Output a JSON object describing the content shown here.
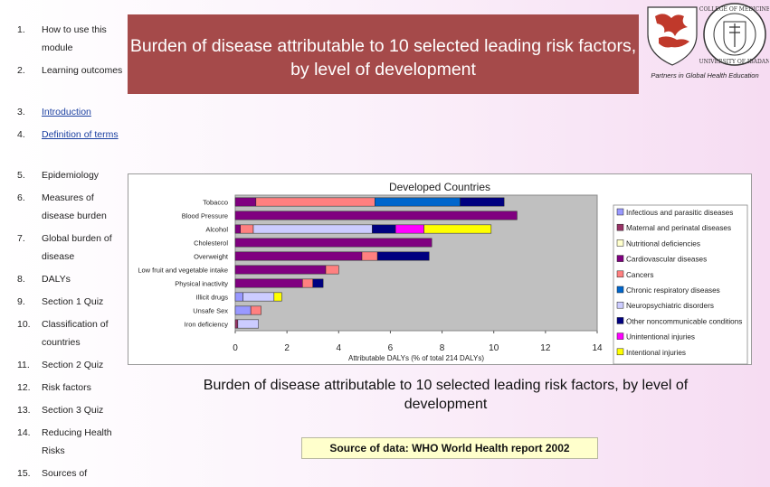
{
  "header": {
    "title": "Burden of disease attributable to 10 selected leading risk factors, by level of development"
  },
  "logo": {
    "partners_text": "Partners in Global Health Education"
  },
  "sidebar": {
    "items": [
      {
        "num": "1.",
        "label": "How to use this module",
        "link": false
      },
      {
        "num": "2.",
        "label": "Learning outcomes",
        "link": false
      },
      {
        "num": "3.",
        "label": "Introduction",
        "link": true
      },
      {
        "num": "4.",
        "label": "Definition of terms",
        "link": true
      },
      {
        "num": "5.",
        "label": "Epidemiology",
        "link": false
      },
      {
        "num": "6.",
        "label": "Measures of disease burden",
        "link": false
      },
      {
        "num": "7.",
        "label": "Global burden of disease",
        "link": false
      },
      {
        "num": "8.",
        "label": "DALYs",
        "link": false
      },
      {
        "num": "9.",
        "label": "Section 1 Quiz",
        "link": false
      },
      {
        "num": "10.",
        "label": "Classification of countries",
        "link": false
      },
      {
        "num": "11.",
        "label": "Section 2 Quiz",
        "link": false
      },
      {
        "num": "12.",
        "label": "Risk factors",
        "link": false
      },
      {
        "num": "13.",
        "label": "Section 3 Quiz",
        "link": false
      },
      {
        "num": "14.",
        "label": "Reducing Health Risks",
        "link": false
      },
      {
        "num": "15.",
        "label": "Sources of",
        "link": false
      }
    ]
  },
  "caption": "Burden of disease attributable to 10 selected leading risk factors, by level of development",
  "source": "Source of data: WHO World Health report 2002",
  "chart_data": {
    "type": "bar",
    "orientation": "horizontal",
    "stacked": true,
    "title": "Developed Countries",
    "xlabel": "Attributable DALYs (% of total 214 DALYs)",
    "xlim": [
      0,
      14
    ],
    "xticks": [
      0,
      2,
      4,
      6,
      8,
      10,
      12,
      14
    ],
    "grid": false,
    "legend_position": "right",
    "categories": [
      "Tobacco",
      "Blood Pressure",
      "Alcohol",
      "Cholesterol",
      "Overweight",
      "Low fruit and vegetable intake",
      "Physical inactivity",
      "Illicit drugs",
      "Unsafe Sex",
      "Iron deficiency"
    ],
    "series": [
      {
        "name": "Infectious and parasitic diseases",
        "color": "#9999ff",
        "values": [
          0,
          0,
          0,
          0,
          0,
          0,
          0,
          0,
          0,
          0
        ]
      },
      {
        "name": "Maternal and perinatal diseases",
        "color": "#993366",
        "values": [
          0,
          0,
          0,
          0,
          0,
          0,
          0,
          0,
          0,
          0
        ]
      },
      {
        "name": "Nutritional deficiencies",
        "color": "#ffffcc",
        "values": [
          0,
          0,
          0,
          0,
          0,
          0,
          0,
          0,
          0,
          0
        ]
      },
      {
        "name": "Cardiovascular diseases",
        "color": "#800080",
        "values": [
          0.8,
          10.9,
          0.2,
          7.6,
          4.9,
          3.5,
          2.6,
          0,
          0,
          0
        ]
      },
      {
        "name": "Cancers",
        "color": "#ff8080",
        "values": [
          4.6,
          0,
          0.5,
          0,
          0.6,
          0.5,
          0.4,
          0,
          0.4,
          0
        ]
      },
      {
        "name": "Chronic respiratory diseases",
        "color": "#0066cc",
        "values": [
          3.3,
          0,
          0,
          0,
          0,
          0,
          0,
          0,
          0,
          0
        ]
      },
      {
        "name": "Neuropsychiatric disorders",
        "color": "#ccccff",
        "values": [
          0,
          0,
          4.6,
          0,
          0,
          0,
          0,
          1.2,
          0,
          0.8
        ]
      },
      {
        "name": "Other noncommunicable conditions",
        "color": "#000080",
        "values": [
          1.7,
          0,
          0.9,
          0,
          2.0,
          0,
          0.4,
          0,
          0,
          0
        ]
      },
      {
        "name": "Unintentional injuries",
        "color": "#ff00ff",
        "values": [
          0,
          0,
          1.1,
          0,
          0,
          0,
          0,
          0,
          0,
          0
        ]
      },
      {
        "name": "Intentional injuries",
        "color": "#ffff00",
        "values": [
          0,
          0,
          2.6,
          0,
          0,
          0,
          0,
          0.3,
          0,
          0
        ]
      }
    ],
    "extra_segments": [
      {
        "category": "Illicit drugs",
        "series": "Infectious and parasitic diseases",
        "value": 0.3
      },
      {
        "category": "Unsafe Sex",
        "series": "Infectious and parasitic diseases",
        "value": 0.6
      },
      {
        "category": "Iron deficiency",
        "series": "Maternal and perinatal diseases",
        "value": 0.1
      }
    ]
  }
}
